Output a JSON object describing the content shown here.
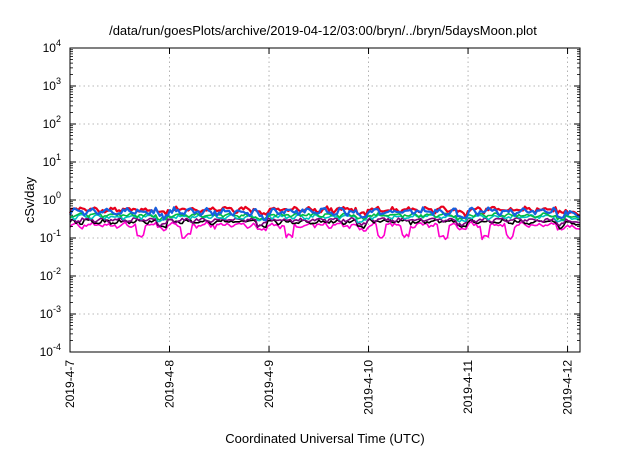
{
  "chart_data": {
    "type": "line",
    "title": "/data/run/goesPlots/archive/2019-04-12/03:00/bryn/../bryn/5daysMoon.plot",
    "xlabel": "Coordinated Universal Time (UTC)",
    "ylabel": "cSv/day",
    "y_scale": "log",
    "ylim": [
      0.0001,
      10000
    ],
    "y_ticks": [
      {
        "value": 0.0001,
        "base": "10",
        "exp": "-4"
      },
      {
        "value": 0.001,
        "base": "10",
        "exp": "-3"
      },
      {
        "value": 0.01,
        "base": "10",
        "exp": "-2"
      },
      {
        "value": 0.1,
        "base": "10",
        "exp": "-1"
      },
      {
        "value": 1,
        "base": "10",
        "exp": "0"
      },
      {
        "value": 10,
        "base": "10",
        "exp": "1"
      },
      {
        "value": 100,
        "base": "10",
        "exp": "2"
      },
      {
        "value": 1000,
        "base": "10",
        "exp": "3"
      },
      {
        "value": 10000,
        "base": "10",
        "exp": "4"
      }
    ],
    "xlim": [
      "2019-04-07T00:00",
      "2019-04-12T03:00"
    ],
    "x_ticks": [
      {
        "value": "2019-04-07T00:00",
        "label": "2019-4-7"
      },
      {
        "value": "2019-04-08T00:00",
        "label": "2019-4-8"
      },
      {
        "value": "2019-04-09T00:00",
        "label": "2019-4-9"
      },
      {
        "value": "2019-04-10T00:00",
        "label": "2019-4-10"
      },
      {
        "value": "2019-04-11T00:00",
        "label": "2019-4-11"
      },
      {
        "value": "2019-04-12T00:00",
        "label": "2019-4-12"
      }
    ],
    "grid": true,
    "series": [
      {
        "color": "#ff00cc",
        "base": 0.22,
        "amp": 0.04,
        "dips": [
          "2019-04-07T17:00",
          "2019-04-08T04:00",
          "2019-04-09T05:00",
          "2019-04-10T03:00",
          "2019-04-10T09:00",
          "2019-04-10T18:00",
          "2019-04-11T04:00",
          "2019-04-11T10:00"
        ],
        "end": 0.17
      },
      {
        "color": "#000000",
        "base": 0.27,
        "amp": 0.04,
        "dips": [],
        "end": 0.22
      },
      {
        "color": "#7f007f",
        "base": 0.3,
        "amp": 0.04,
        "dips": [],
        "end": 0.25
      },
      {
        "color": "#00c0c0",
        "base": 0.36,
        "amp": 0.05,
        "dips": [],
        "end": 0.3
      },
      {
        "color": "#00bb44",
        "base": 0.4,
        "amp": 0.05,
        "dips": [],
        "end": 0.33
      },
      {
        "color": "#e8001c",
        "base": 0.56,
        "amp": 0.1,
        "dips": [],
        "end": 0.38
      },
      {
        "color": "#1560e0",
        "base": 0.5,
        "amp": 0.12,
        "dips": [],
        "end": 0.35
      }
    ]
  }
}
